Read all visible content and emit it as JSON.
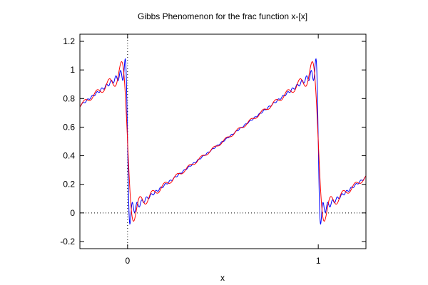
{
  "chart_data": {
    "type": "line",
    "title": "Gibbs Phenomenon for the frac function x-[x]",
    "xlabel": "x",
    "ylabel": "",
    "xlim": [
      -0.25,
      1.25
    ],
    "ylim": [
      -0.25,
      1.25
    ],
    "xticks": [
      0,
      1
    ],
    "xtick_labels": [
      "0",
      "1"
    ],
    "yticks": [
      -0.2,
      0,
      0.2,
      0.4,
      0.6,
      0.8,
      1,
      1.2
    ],
    "ytick_labels": [
      "-0.2",
      "0",
      "0.2",
      "0.4",
      "0.6",
      "0.8",
      "1",
      "1.2"
    ],
    "zero_axes": "dotted",
    "grid": false,
    "series": [
      {
        "color": "#0000ff",
        "description": "Fourier partial sum of x-[x], moderate number of terms",
        "terms": 40,
        "x": [
          -0.25,
          1.25
        ]
      },
      {
        "color": "#ff0000",
        "description": "Fourier partial sum of x-[x], few terms",
        "terms": 15,
        "x": [
          -0.25,
          1.25
        ]
      }
    ]
  }
}
